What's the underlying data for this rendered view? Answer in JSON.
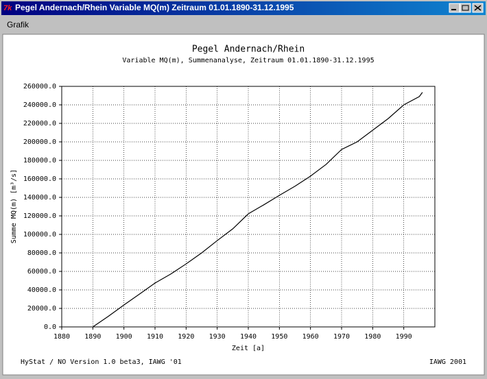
{
  "window": {
    "title": "Pegel Andernach/Rhein Variable MQ(m) Zeitraum 01.01.1890-31.12.1995",
    "menu": [
      "Grafik"
    ]
  },
  "chart_data": {
    "type": "line",
    "title": "Pegel Andernach/Rhein",
    "subtitle": "Variable MQ(m), Summenanalyse, Zeitraum 01.01.1890-31.12.1995",
    "xlabel": "Zeit [a]",
    "ylabel": "Summe MQ(m)  [m³/s]",
    "x": [
      1890,
      1895,
      1900,
      1905,
      1910,
      1915,
      1920,
      1925,
      1930,
      1935,
      1940,
      1945,
      1950,
      1955,
      1960,
      1965,
      1970,
      1975,
      1980,
      1985,
      1990,
      1995,
      1996
    ],
    "series": [
      {
        "color": "#000000",
        "values": [
          0,
          11500,
          23700,
          35500,
          47400,
          57000,
          68100,
          80000,
          93300,
          106000,
          122200,
          132000,
          142200,
          152000,
          163000,
          175600,
          191800,
          200000,
          212600,
          225200,
          240000,
          249000,
          253500
        ]
      }
    ],
    "xlim": [
      1880,
      2000
    ],
    "xticks": [
      1880,
      1890,
      1900,
      1910,
      1920,
      1930,
      1940,
      1950,
      1960,
      1970,
      1980,
      1990
    ],
    "ylim": [
      0,
      260000
    ],
    "yticks": [
      {
        "value": 0,
        "label": "0.0"
      },
      {
        "value": 20000,
        "label": "20000.0"
      },
      {
        "value": 40000,
        "label": "40000.0"
      },
      {
        "value": 60000,
        "label": "60000.0"
      },
      {
        "value": 80000,
        "label": "80000.0"
      },
      {
        "value": 100000,
        "label": "100000.0"
      },
      {
        "value": 120000,
        "label": "120000.0"
      },
      {
        "value": 140000,
        "label": "140000.0"
      },
      {
        "value": 160000,
        "label": "160000.0"
      },
      {
        "value": 180000,
        "label": "180000.0"
      },
      {
        "value": 200000,
        "label": "200000.0"
      },
      {
        "value": 220000,
        "label": "220000.0"
      },
      {
        "value": 240000,
        "label": "240000.0"
      },
      {
        "value": 260000,
        "label": "260000.0"
      }
    ],
    "grid": true
  },
  "footer": {
    "left": "HyStat / NO Version 1.0 beta3, IAWG '01",
    "right": "IAWG 2001"
  }
}
